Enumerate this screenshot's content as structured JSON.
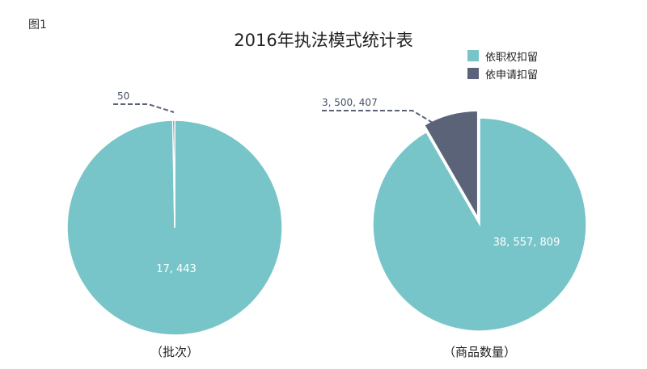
{
  "figure_label": "图1",
  "chart_data": {
    "type": "pie",
    "title": "2016年执法模式统计表",
    "legend": {
      "placement": "top-right"
    },
    "series_names": [
      "依职权扣留",
      "依申请扣留"
    ],
    "colors": [
      "#78c5c9",
      "#5b6379"
    ],
    "pies": [
      {
        "caption": "（批次）",
        "slices": [
          {
            "name": "依职权扣留",
            "value": 17443,
            "label": "17, 443"
          },
          {
            "name": "依申请扣留",
            "value": 50,
            "label": "50"
          }
        ]
      },
      {
        "caption": "（商品数量）",
        "slices": [
          {
            "name": "依职权扣留",
            "value": 38557809,
            "label": "38, 557, 809"
          },
          {
            "name": "依申请扣留",
            "value": 3500407,
            "label": "3, 500, 407"
          }
        ]
      }
    ]
  }
}
